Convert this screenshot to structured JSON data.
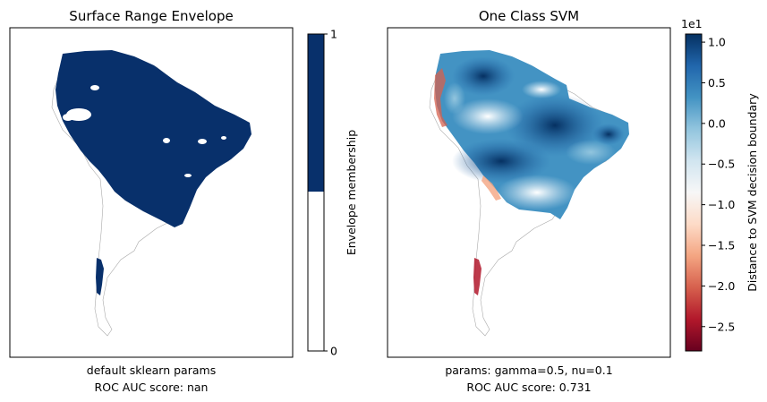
{
  "colors": {
    "envelope": "#08306b",
    "land_outline": "#aaaaaa",
    "rdbu": [
      "#67001f",
      "#b2182b",
      "#d6604d",
      "#f4a582",
      "#fddbc7",
      "#f7f7f7",
      "#d1e5f0",
      "#92c5de",
      "#4393c3",
      "#2166ac",
      "#053061"
    ]
  },
  "chart_data": [
    {
      "type": "heatmap",
      "title": "Surface Range Envelope",
      "caption_lines": [
        "default sklearn params",
        "ROC AUC score: nan"
      ],
      "value_range": [
        0,
        1
      ],
      "colorbar": {
        "label": "Envelope membership",
        "ticks": [
          0,
          1
        ],
        "tick_labels": [
          "0",
          "1"
        ],
        "discrete_levels": [
          0,
          1
        ]
      },
      "xticks": [],
      "yticks": []
    },
    {
      "type": "heatmap",
      "title": "One Class SVM",
      "caption_lines": [
        "params: gamma=0.5, nu=0.1",
        "ROC AUC score: 0.731"
      ],
      "value_range": [
        -2.8,
        1.1
      ],
      "colorbar": {
        "label": "Distance to SVM decision boundary",
        "offset_text": "1e1",
        "ticks": [
          1.0,
          0.5,
          0.0,
          -0.5,
          -1.0,
          -1.5,
          -2.0,
          -2.5
        ],
        "tick_labels": [
          "1.0",
          "0.5",
          "0.0",
          "−0.5",
          "−1.0",
          "−1.5",
          "−2.0",
          "−2.5"
        ],
        "colormap": "RdBu"
      },
      "xticks": [],
      "yticks": []
    }
  ]
}
